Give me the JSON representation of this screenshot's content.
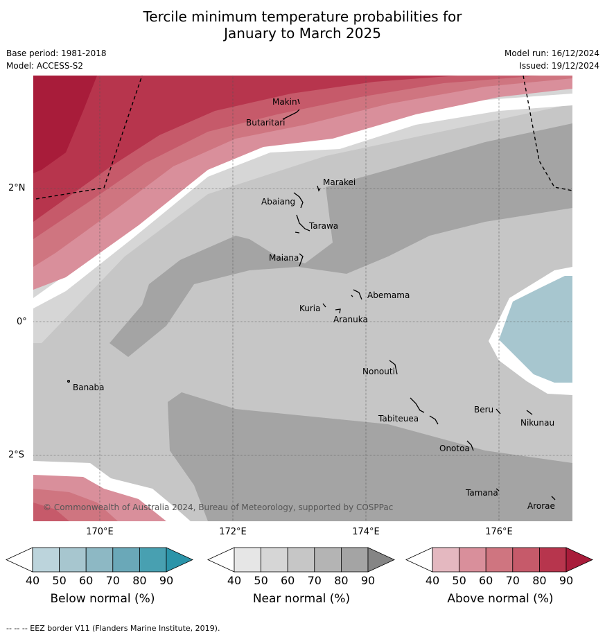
{
  "title_line1": "Tercile minimum temperature probabilities for",
  "title_line2": "January to March 2025",
  "meta_left": [
    "Base period: 1981-2018",
    "Model: ACCESS-S2"
  ],
  "meta_right": [
    "Model run: 16/12/2024",
    "Issued: 19/12/2024"
  ],
  "copyright": "© Commonwealth of Australia 2024, Bureau of Meteorology, supported by COSPPac",
  "lon_labels": [
    "170°E",
    "172°E",
    "174°E",
    "176°E"
  ],
  "lat_labels": [
    "2°N",
    "0°",
    "2°S"
  ],
  "places": [
    "Makin",
    "Butaritari",
    "Marakei",
    "Abaiang",
    "Tarawa",
    "Maiana",
    "Abemama",
    "Kuria",
    "Aranuka",
    "Banaba",
    "Nonouti",
    "Beru",
    "Tabiteuea",
    "Nikunau",
    "Onotoa",
    "Tamana",
    "Arorae"
  ],
  "colorbars": [
    {
      "title": "Below normal (%)",
      "ticks": [
        "40",
        "50",
        "60",
        "70",
        "80",
        "90"
      ],
      "colors": [
        "#ffffff",
        "#bcd4dc",
        "#a7c6cf",
        "#8db8c4",
        "#6aa8b8",
        "#48a0b1",
        "#2b94a9"
      ]
    },
    {
      "title": "Near normal (%)",
      "ticks": [
        "40",
        "50",
        "60",
        "70",
        "80",
        "90"
      ],
      "colors": [
        "#ffffff",
        "#e6e6e6",
        "#d6d6d6",
        "#c6c6c6",
        "#b4b4b4",
        "#a4a4a4",
        "#858585"
      ]
    },
    {
      "title": "Above normal (%)",
      "ticks": [
        "40",
        "50",
        "60",
        "70",
        "80",
        "90"
      ],
      "colors": [
        "#ffffff",
        "#e4b8c0",
        "#d98f9b",
        "#cf7580",
        "#c65a6a",
        "#b7354d",
        "#a81c3a"
      ]
    }
  ],
  "footer": "--  --  -- EEZ border V11 (Flanders Marine Institute, 2019)."
}
